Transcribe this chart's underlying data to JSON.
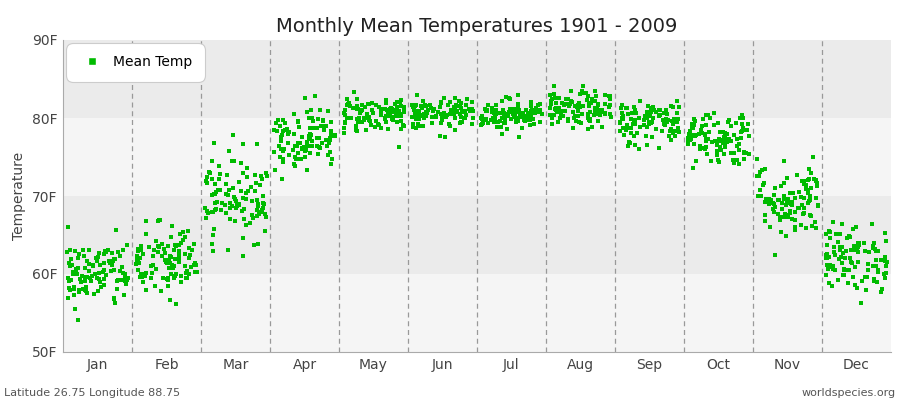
{
  "title": "Monthly Mean Temperatures 1901 - 2009",
  "ylabel": "Temperature",
  "ylim": [
    50,
    90
  ],
  "yticks": [
    50,
    60,
    70,
    80,
    90
  ],
  "ytick_labels": [
    "50F",
    "60F",
    "70F",
    "80F",
    "90F"
  ],
  "months": [
    "Jan",
    "Feb",
    "Mar",
    "Apr",
    "May",
    "Jun",
    "Jul",
    "Aug",
    "Sep",
    "Oct",
    "Nov",
    "Dec"
  ],
  "n_years": 109,
  "dot_color": "#00BB00",
  "dot_size": 10,
  "background_color": "#ffffff",
  "plot_bg_color": "#ebebeb",
  "alt_band_color": "#f5f5f5",
  "dashed_line_color": "#999999",
  "footer_left": "Latitude 26.75 Longitude 88.75",
  "footer_right": "worldspecies.org",
  "legend_label": "Mean Temp",
  "mean_temps": [
    60.0,
    61.5,
    70.0,
    77.5,
    80.5,
    80.5,
    80.5,
    81.0,
    79.5,
    77.5,
    69.5,
    62.0
  ],
  "std_temps": [
    2.2,
    2.5,
    2.8,
    2.0,
    1.2,
    1.0,
    1.0,
    1.2,
    1.5,
    1.8,
    2.5,
    2.2
  ],
  "title_fontsize": 14,
  "axis_fontsize": 10,
  "footer_fontsize": 8
}
